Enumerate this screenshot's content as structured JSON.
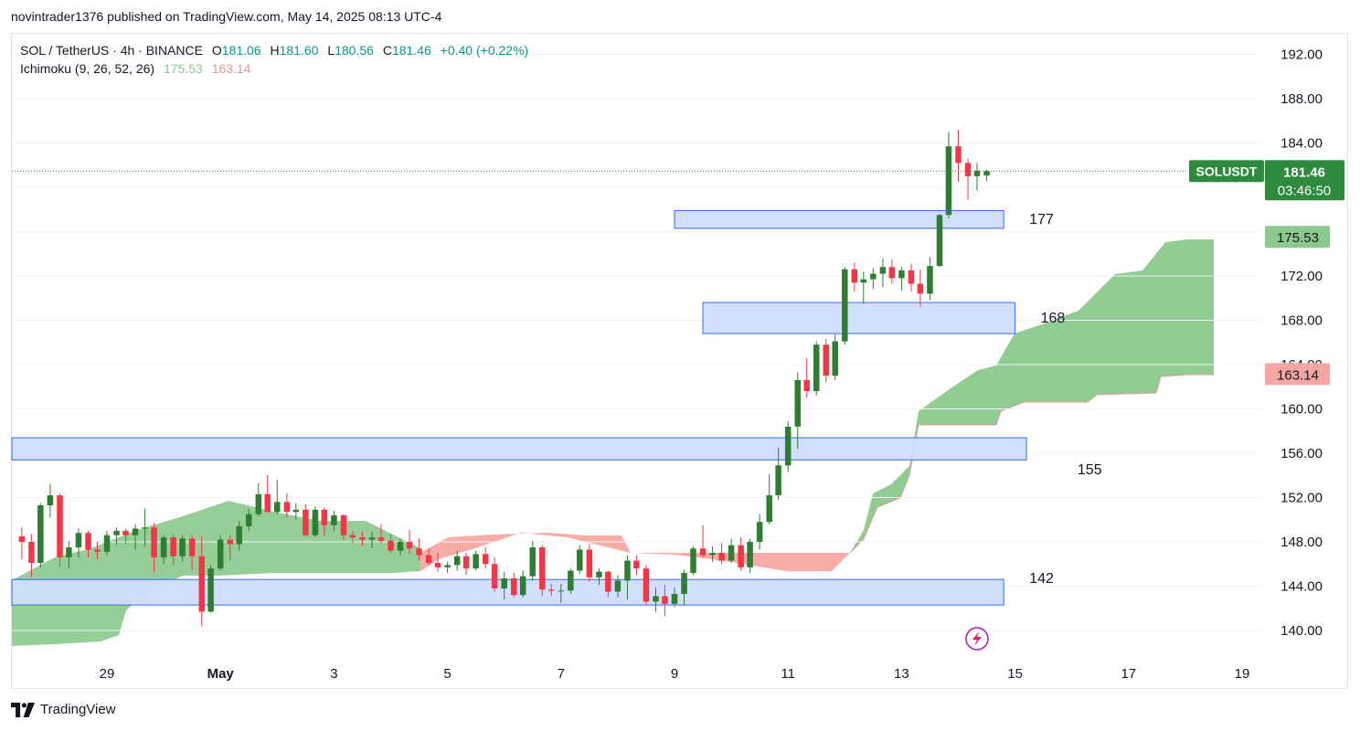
{
  "header": {
    "published_by": "novintrader1376 published on TradingView.com, May 14, 2025 08:13 UTC-4"
  },
  "legend": {
    "symbol_line": "SOL / TetherUS · 4h · BINANCE",
    "o_label": "O",
    "o_value": "181.06",
    "h_label": "H",
    "h_value": "181.60",
    "l_label": "L",
    "l_value": "180.56",
    "c_label": "C",
    "c_value": "181.46",
    "change": "+0.40 (+0.22%)",
    "indicator_name": "Ichimoku (9, 26, 52, 26)",
    "span_a": "175.53",
    "span_b": "163.14"
  },
  "footer": {
    "brand": "TradingView"
  },
  "colors": {
    "up": "#2e7d32",
    "down": "#f23645",
    "cloud_bull": "#8bc98d",
    "cloud_bear": "#f6a39d",
    "zone_fill": "#d1defe",
    "zone_stroke": "#2962ff",
    "price_tag": "#2e8b3d",
    "span_a_tag": "#8bc98d",
    "span_b_tag": "#f4a6a2"
  },
  "chart_data": {
    "type": "candlestick",
    "symbol": "SOLUSDT",
    "timeframe": "4h",
    "x_ticks": [
      {
        "day": 29,
        "label": "29"
      },
      {
        "day": 31,
        "label": "May"
      },
      {
        "day": 33,
        "label": "3"
      },
      {
        "day": 35,
        "label": "5"
      },
      {
        "day": 37,
        "label": "7"
      },
      {
        "day": 39,
        "label": "9"
      },
      {
        "day": 41,
        "label": "11"
      },
      {
        "day": 43,
        "label": "13"
      },
      {
        "day": 45,
        "label": "15"
      },
      {
        "day": 47,
        "label": "17"
      },
      {
        "day": 49,
        "label": "19"
      }
    ],
    "y_ticks": [
      "140.00",
      "144.00",
      "148.00",
      "152.00",
      "156.00",
      "160.00",
      "164.00",
      "168.00",
      "172.00",
      "176.00",
      "180.00",
      "184.00",
      "188.00",
      "192.00"
    ],
    "ylim": [
      137.5,
      196
    ],
    "xlim_days": [
      27.0,
      51.0
    ],
    "current_price": {
      "label": "SOLUSDT",
      "value": 181.46,
      "value_text": "181.46",
      "countdown": "03:46:50"
    },
    "tags": {
      "span_a": "175.53",
      "span_b": "163.14"
    },
    "zones": [
      {
        "label": "177",
        "from_day": 39.0,
        "to_day": 44.8,
        "low": 176.3,
        "high": 177.9
      },
      {
        "label": "168",
        "from_day": 39.5,
        "to_day": 45.0,
        "low": 166.8,
        "high": 169.6
      },
      {
        "label": "155",
        "from_day": 27.0,
        "to_day": 45.2,
        "low": 155.4,
        "high": 157.4
      },
      {
        "label": "142",
        "from_day": 27.0,
        "to_day": 44.8,
        "low": 142.3,
        "high": 144.6
      }
    ],
    "candles": [
      [
        27.0,
        149.2,
        150.0,
        147.5,
        148.3
      ],
      [
        27.17,
        148.3,
        150.2,
        147.8,
        149.9
      ],
      [
        27.33,
        149.9,
        150.1,
        147.9,
        148.5
      ],
      [
        27.5,
        148.5,
        149.3,
        146.4,
        148.0
      ],
      [
        27.67,
        148.0,
        148.7,
        144.8,
        146.1
      ],
      [
        27.83,
        146.1,
        151.5,
        145.7,
        151.3
      ],
      [
        28.0,
        151.3,
        153.2,
        150.2,
        152.2
      ],
      [
        28.17,
        152.2,
        152.4,
        145.8,
        146.6
      ],
      [
        28.33,
        146.6,
        148.1,
        145.6,
        147.5
      ],
      [
        28.5,
        147.5,
        149.2,
        146.6,
        148.8
      ],
      [
        28.67,
        148.8,
        149.0,
        146.6,
        147.3
      ],
      [
        28.83,
        147.3,
        148.0,
        146.4,
        147.1
      ],
      [
        29.0,
        147.1,
        149.0,
        146.8,
        148.6
      ],
      [
        29.17,
        148.6,
        149.3,
        147.7,
        149.0
      ],
      [
        29.33,
        149.0,
        149.2,
        147.8,
        148.6
      ],
      [
        29.5,
        148.6,
        149.6,
        147.3,
        149.2
      ],
      [
        29.67,
        149.2,
        151.0,
        147.6,
        149.3
      ],
      [
        29.83,
        149.3,
        149.7,
        145.3,
        146.6
      ],
      [
        30.0,
        146.6,
        148.6,
        146.0,
        148.4
      ],
      [
        30.17,
        148.4,
        148.7,
        145.9,
        146.7
      ],
      [
        30.33,
        146.7,
        148.6,
        146.2,
        148.3
      ],
      [
        30.5,
        148.3,
        148.6,
        145.4,
        146.7
      ],
      [
        30.67,
        146.7,
        148.5,
        140.4,
        141.7
      ],
      [
        30.83,
        141.7,
        145.9,
        141.6,
        145.6
      ],
      [
        31.0,
        145.6,
        148.6,
        145.4,
        148.2
      ],
      [
        31.17,
        148.2,
        148.6,
        146.3,
        147.8
      ],
      [
        31.33,
        147.8,
        149.9,
        147.2,
        149.4
      ],
      [
        31.5,
        149.4,
        151.0,
        149.0,
        150.5
      ],
      [
        31.67,
        150.5,
        153.3,
        150.3,
        152.3
      ],
      [
        31.83,
        152.3,
        154.0,
        150.6,
        150.7
      ],
      [
        32.0,
        150.7,
        153.6,
        150.5,
        151.6
      ],
      [
        32.17,
        151.6,
        152.4,
        150.2,
        150.7
      ],
      [
        32.33,
        150.7,
        151.5,
        150.0,
        150.9
      ],
      [
        32.5,
        150.9,
        151.4,
        148.5,
        148.6
      ],
      [
        32.67,
        148.6,
        151.2,
        148.4,
        150.9
      ],
      [
        32.83,
        150.9,
        151.1,
        148.5,
        149.5
      ],
      [
        33.0,
        149.5,
        150.8,
        149.0,
        150.4
      ],
      [
        33.17,
        150.4,
        150.5,
        148.2,
        148.6
      ],
      [
        33.33,
        148.6,
        149.0,
        147.9,
        148.4
      ],
      [
        33.5,
        148.4,
        148.9,
        147.6,
        148.2
      ],
      [
        33.67,
        148.2,
        148.9,
        147.4,
        148.4
      ],
      [
        33.83,
        148.4,
        149.6,
        147.9,
        148.1
      ],
      [
        34.0,
        148.1,
        148.7,
        147.0,
        147.2
      ],
      [
        34.17,
        147.2,
        148.3,
        146.8,
        148.0
      ],
      [
        34.33,
        148.0,
        149.1,
        146.9,
        147.4
      ],
      [
        34.5,
        147.4,
        148.3,
        146.3,
        146.8
      ],
      [
        34.67,
        146.8,
        147.4,
        145.9,
        146.1
      ],
      [
        34.83,
        146.1,
        147.0,
        145.3,
        145.7
      ],
      [
        35.0,
        145.7,
        146.2,
        145.2,
        145.9
      ],
      [
        35.17,
        145.9,
        147.2,
        145.4,
        146.7
      ],
      [
        35.33,
        146.7,
        147.0,
        145.0,
        145.6
      ],
      [
        35.5,
        145.6,
        147.2,
        145.4,
        146.9
      ],
      [
        35.67,
        146.9,
        147.5,
        145.6,
        146.0
      ],
      [
        35.83,
        146.0,
        146.6,
        143.5,
        143.8
      ],
      [
        36.0,
        143.8,
        145.3,
        142.8,
        144.7
      ],
      [
        36.17,
        144.7,
        145.2,
        143.0,
        143.2
      ],
      [
        36.33,
        143.2,
        145.4,
        143.0,
        144.9
      ],
      [
        36.5,
        144.9,
        148.1,
        144.5,
        147.5
      ],
      [
        36.67,
        147.5,
        147.7,
        143.1,
        143.7
      ],
      [
        36.83,
        143.7,
        144.2,
        143.1,
        143.6
      ],
      [
        37.0,
        143.6,
        144.2,
        142.5,
        143.6
      ],
      [
        37.17,
        143.6,
        145.6,
        143.3,
        145.4
      ],
      [
        37.33,
        145.4,
        147.7,
        145.1,
        147.3
      ],
      [
        37.5,
        147.3,
        147.8,
        144.4,
        144.8
      ],
      [
        37.67,
        144.8,
        145.6,
        144.1,
        145.3
      ],
      [
        37.83,
        145.3,
        145.4,
        143.0,
        143.5
      ],
      [
        38.0,
        143.5,
        145.0,
        143.0,
        144.5
      ],
      [
        38.17,
        144.5,
        146.8,
        142.8,
        146.3
      ],
      [
        38.33,
        146.3,
        146.8,
        145.0,
        145.6
      ],
      [
        38.5,
        145.6,
        145.9,
        142.3,
        142.6
      ],
      [
        38.67,
        142.6,
        143.9,
        141.7,
        143.1
      ],
      [
        38.83,
        143.1,
        144.1,
        141.3,
        142.4
      ],
      [
        39.0,
        142.4,
        143.9,
        142.1,
        143.3
      ],
      [
        39.17,
        143.3,
        145.5,
        142.3,
        145.2
      ],
      [
        39.33,
        145.2,
        147.6,
        145.0,
        147.4
      ],
      [
        39.5,
        147.4,
        149.5,
        146.6,
        146.8
      ],
      [
        39.67,
        146.8,
        147.6,
        146.2,
        147.0
      ],
      [
        39.83,
        147.0,
        147.9,
        146.0,
        146.3
      ],
      [
        40.0,
        146.3,
        148.3,
        146.1,
        147.7
      ],
      [
        40.17,
        147.7,
        148.4,
        145.4,
        145.7
      ],
      [
        40.33,
        145.7,
        148.3,
        145.2,
        148.0
      ],
      [
        40.5,
        148.0,
        150.5,
        147.3,
        149.8
      ],
      [
        40.67,
        149.8,
        154.1,
        149.6,
        152.2
      ],
      [
        40.83,
        152.2,
        156.5,
        151.8,
        154.9
      ],
      [
        41.0,
        154.9,
        158.9,
        154.3,
        158.4
      ],
      [
        41.17,
        158.4,
        163.3,
        156.4,
        162.6
      ],
      [
        41.33,
        162.6,
        164.6,
        161.0,
        161.6
      ],
      [
        41.5,
        161.6,
        166.1,
        161.2,
        165.8
      ],
      [
        41.67,
        165.8,
        166.3,
        162.4,
        163.0
      ],
      [
        41.83,
        163.0,
        166.7,
        162.6,
        166.1
      ],
      [
        42.0,
        166.1,
        172.8,
        165.8,
        172.6
      ],
      [
        42.17,
        172.6,
        173.2,
        170.6,
        171.4
      ],
      [
        42.33,
        171.4,
        172.4,
        169.5,
        171.7
      ],
      [
        42.5,
        171.7,
        172.7,
        170.8,
        172.2
      ],
      [
        42.67,
        172.2,
        173.6,
        171.0,
        172.8
      ],
      [
        42.83,
        172.8,
        173.5,
        171.3,
        171.8
      ],
      [
        43.0,
        171.8,
        172.8,
        170.7,
        172.5
      ],
      [
        43.17,
        172.5,
        173.1,
        170.6,
        171.3
      ],
      [
        43.33,
        171.3,
        172.6,
        169.2,
        170.4
      ],
      [
        43.5,
        170.4,
        173.7,
        169.8,
        172.9
      ],
      [
        43.67,
        172.9,
        177.6,
        172.8,
        177.5
      ]
    ]
  }
}
